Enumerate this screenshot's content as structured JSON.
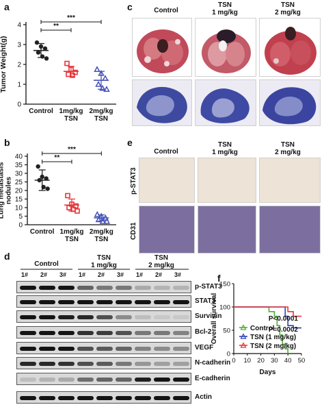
{
  "panels": {
    "a": {
      "label": "a",
      "ylabel": "Tumor Weight(g)",
      "yticks": [
        "0",
        "1",
        "2",
        "3",
        "4"
      ],
      "categories": [
        "Control",
        "1mg/kg\nTSN",
        "2mg/kg\nTSN"
      ],
      "sig": [
        "**",
        "***"
      ]
    },
    "b": {
      "label": "b",
      "ylabel": "Lung metastasis\nnodules",
      "yticks": [
        "0",
        "5",
        "10",
        "15",
        "20",
        "25",
        "30",
        "35",
        "40"
      ],
      "categories": [
        "Control",
        "1mg/kg\nTSN",
        "2mg/kg\nTSN"
      ],
      "sig": [
        "**",
        "***"
      ]
    },
    "c": {
      "label": "c",
      "headers": [
        "Control",
        "TSN\n1 mg/kg",
        "TSN\n2 mg/kg"
      ]
    },
    "d": {
      "label": "d",
      "groups": [
        "Control",
        "TSN\n1 mg/kg",
        "TSN\n2 mg/kg"
      ],
      "lanes": [
        "1#",
        "2#",
        "3#",
        "1#",
        "2#",
        "3#",
        "1#",
        "2#",
        "3#"
      ],
      "proteins": [
        "p-STAT3",
        "STAT3",
        "Survivin",
        "Bcl-2",
        "VEGF",
        "N-cadherin",
        "E-cadherin",
        "Actin"
      ]
    },
    "e": {
      "label": "e",
      "headers": [
        "Control",
        "TSN\n1 mg/kg",
        "TSN\n2 mg/kg"
      ],
      "rows": [
        "p-STAT3",
        "CD31"
      ]
    },
    "f": {
      "label": "f",
      "ylabel": "Overall survival",
      "xlabel": "Days",
      "yticks": [
        "0",
        "50",
        "100",
        "150"
      ],
      "xticks": [
        "0",
        "10",
        "20",
        "30",
        "40",
        "50"
      ],
      "pvals": [
        "P<0.0001",
        "P=0.0002"
      ]
    }
  },
  "chart_data": [
    {
      "type": "scatter",
      "panel": "a",
      "ylabel": "Tumor Weight(g)",
      "ylim": [
        0,
        4
      ],
      "categories": [
        "Control",
        "1mg/kg TSN",
        "2mg/kg TSN"
      ],
      "colors": [
        "#222222",
        "#e8333a",
        "#4553b8"
      ],
      "markers": [
        "circle",
        "square",
        "triangle"
      ],
      "points": [
        [
          3.1,
          2.9,
          2.8,
          2.6,
          2.4,
          2.3
        ],
        [
          2.05,
          1.75,
          1.6,
          1.5,
          1.45
        ],
        [
          1.75,
          1.55,
          1.3,
          1.0,
          0.8,
          0.75
        ]
      ],
      "means": [
        2.7,
        1.65,
        1.2
      ],
      "sds": [
        0.35,
        0.25,
        0.45
      ]
    },
    {
      "type": "scatter",
      "panel": "b",
      "ylabel": "Lung metastasis nodules",
      "ylim": [
        0,
        40
      ],
      "categories": [
        "Control",
        "1mg/kg TSN",
        "2mg/kg TSN"
      ],
      "colors": [
        "#222222",
        "#e8333a",
        "#4553b8"
      ],
      "markers": [
        "circle",
        "square",
        "triangle"
      ],
      "points": [
        [
          34,
          28,
          27,
          26,
          22,
          21
        ],
        [
          17,
          12,
          11,
          10,
          9,
          8
        ],
        [
          6,
          5,
          4,
          3,
          2,
          2
        ]
      ],
      "means": [
        26,
        11.5,
        4
      ],
      "sds": [
        6,
        3.5,
        1.8
      ]
    },
    {
      "type": "line",
      "panel": "f",
      "xlabel": "Days",
      "ylabel": "Overall survival",
      "xlim": [
        0,
        50
      ],
      "ylim": [
        0,
        150
      ],
      "series": [
        {
          "name": "Control",
          "color": "#4caf2e",
          "x": [
            0,
            26,
            30,
            32,
            34,
            36,
            38,
            40
          ],
          "y": [
            100,
            90,
            80,
            60,
            40,
            20,
            10,
            0
          ]
        },
        {
          "name": "TSN (1 mg/kg)",
          "color": "#2f3fb8",
          "x": [
            0,
            38,
            40,
            44,
            50
          ],
          "y": [
            100,
            80,
            60,
            55,
            55
          ]
        },
        {
          "name": "TSN (2 mg/kg)",
          "color": "#e8333a",
          "x": [
            0,
            40,
            44,
            50
          ],
          "y": [
            100,
            90,
            80,
            80
          ]
        }
      ]
    }
  ]
}
